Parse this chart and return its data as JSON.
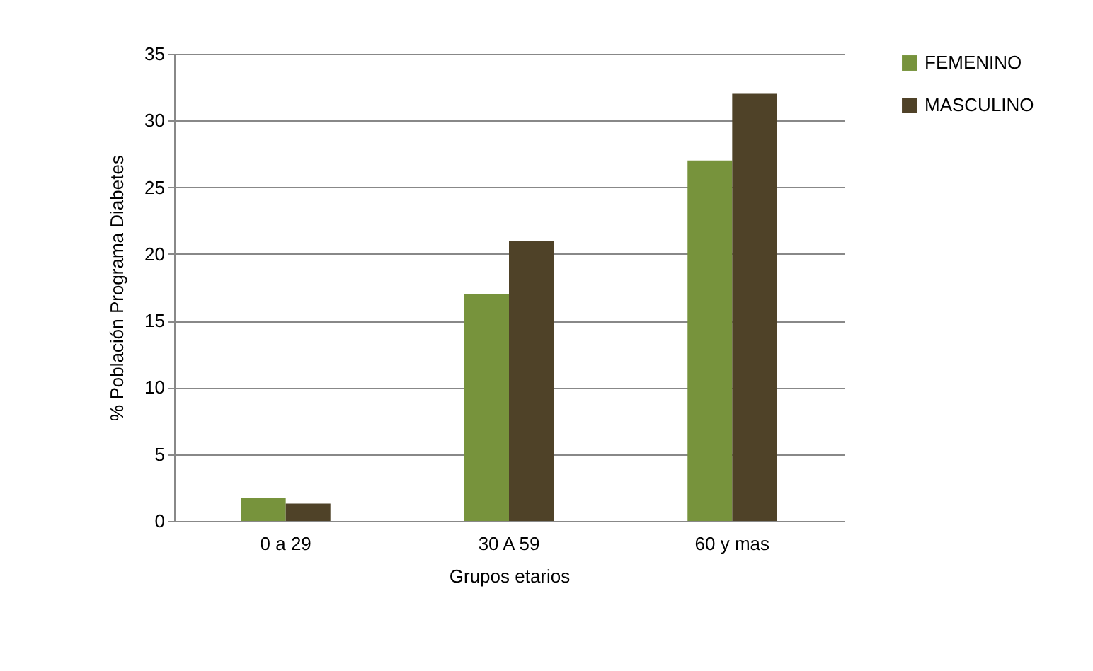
{
  "chart_data": {
    "type": "bar",
    "xlabel": "Grupos etarios",
    "ylabel": "% Población Programa  Diabetes",
    "categories": [
      "0 a 29",
      "30 A 59",
      "60 y mas"
    ],
    "series": [
      {
        "name": "FEMENINO",
        "color": "#77933c",
        "values": [
          1.7,
          17,
          27
        ]
      },
      {
        "name": "MASCULINO",
        "color": "#4f4228",
        "values": [
          1.3,
          21,
          32
        ]
      }
    ],
    "ylim": [
      0,
      35
    ],
    "yticks": [
      0,
      5,
      10,
      15,
      20,
      25,
      30,
      35
    ],
    "grid": "y",
    "legend": "right"
  }
}
